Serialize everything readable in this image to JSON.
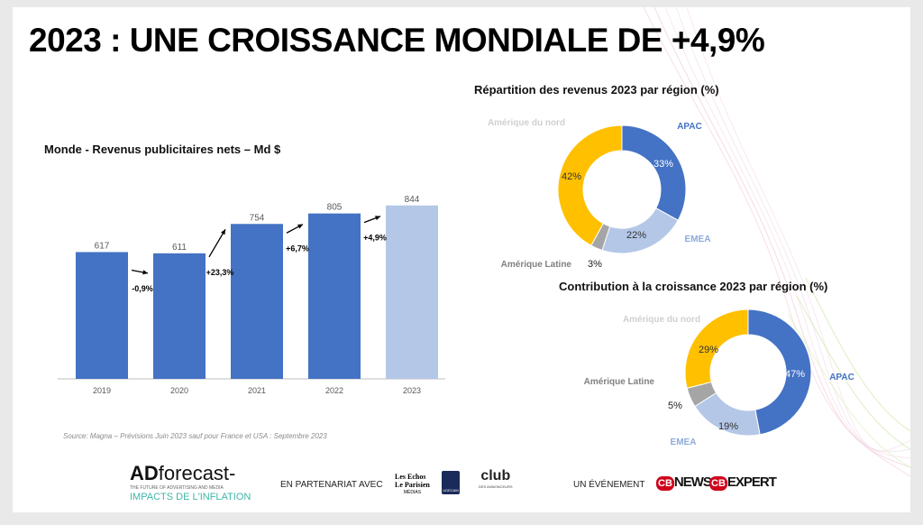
{
  "title": "2023 : UNE CROISSANCE MONDIALE DE +4,9%",
  "source": "Source:  Magna – Prévisions Juin 2023 sauf pour France et USA : Septembre 2023",
  "colors": {
    "blue": "#4472c4",
    "light_blue": "#b4c7e7",
    "gold": "#ffc000",
    "grey": "#a5a5a5",
    "apac_label": "#4472c4",
    "emea_label": "#8eaadb",
    "grey_label": "#808080",
    "light_label": "#d0d0d0"
  },
  "chart_data": [
    {
      "type": "bar",
      "title": "Monde - Revenus publicitaires nets – Md $",
      "categories": [
        "2019",
        "2020",
        "2021",
        "2022",
        "2023"
      ],
      "values": [
        617,
        611,
        754,
        805,
        844
      ],
      "growth_labels": [
        "-0,9%",
        "+23,3%",
        "+6,7%",
        "+4,9%"
      ],
      "xlabel": "",
      "ylabel": "",
      "ylim": [
        0,
        900
      ],
      "grid": false
    },
    {
      "type": "pie",
      "title": "Répartition des revenus 2023 par région (%)",
      "slices": [
        {
          "name": "APAC",
          "value": 33,
          "label": "33%"
        },
        {
          "name": "EMEA",
          "value": 22,
          "label": "22%"
        },
        {
          "name": "Amérique Latine",
          "value": 3,
          "label": "3%"
        },
        {
          "name": "Amérique du nord",
          "value": 42,
          "label": "42%"
        }
      ]
    },
    {
      "type": "pie",
      "title": "Contribution à la croissance 2023 par région (%)",
      "slices": [
        {
          "name": "APAC",
          "value": 47,
          "label": "47%"
        },
        {
          "name": "EMEA",
          "value": 19,
          "label": "19%"
        },
        {
          "name": "Amérique Latine",
          "value": 5,
          "label": "5%"
        },
        {
          "name": "Amérique du nord",
          "value": 29,
          "label": "29%"
        }
      ]
    }
  ],
  "footer": {
    "brand_ad": "AD",
    "brand_forecast": "forecast",
    "brand_tagline": "THE FUTURE OF ADVERTISING AND MEDIA",
    "brand_sub": "IMPACTS DE L'INFLATION",
    "partner_text": "EN PARTENARIAT AVEC",
    "partner_echos": "Les Echos",
    "partner_parisien": "Le Parisien",
    "partner_medias": "MÉDIAS",
    "partner_udecam": "UDECAM",
    "partner_club": "club",
    "partner_club_sub": "DES ANNONCEURS",
    "event_text": "UN ÉVÉNEMENT",
    "cb_news": "NEWS",
    "cb_expert": "EXPERT",
    "cb_mark": "CB"
  }
}
